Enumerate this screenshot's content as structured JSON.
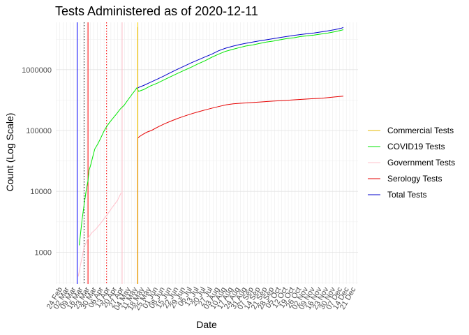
{
  "chart_data": {
    "type": "line",
    "title": "Tests Administered as of 2020-12-11",
    "xlabel": "Date",
    "ylabel": "Count (Log Scale)",
    "y_scale": "log",
    "ylim": [
      300,
      6000000
    ],
    "xlim": [
      "2020-02-20",
      "2020-12-26"
    ],
    "grid": true,
    "legend_position": "right",
    "y_ticks": [
      {
        "value": 1000,
        "label": "1000"
      },
      {
        "value": 10000,
        "label": "10000"
      },
      {
        "value": 100000,
        "label": "100000"
      },
      {
        "value": 1000000,
        "label": "1000000"
      }
    ],
    "x_ticks": [
      {
        "date": "2020-02-24",
        "label": "24 Feb"
      },
      {
        "date": "2020-03-02",
        "label": "02 Mar"
      },
      {
        "date": "2020-03-09",
        "label": "09 Mar"
      },
      {
        "date": "2020-03-16",
        "label": "16 Mar"
      },
      {
        "date": "2020-03-23",
        "label": "23 Mar"
      },
      {
        "date": "2020-03-30",
        "label": "30 Mar"
      },
      {
        "date": "2020-04-06",
        "label": "06 Apr"
      },
      {
        "date": "2020-04-13",
        "label": "13 Apr"
      },
      {
        "date": "2020-04-20",
        "label": "20 Apr"
      },
      {
        "date": "2020-04-27",
        "label": "27 Apr"
      },
      {
        "date": "2020-05-04",
        "label": "04 May"
      },
      {
        "date": "2020-05-11",
        "label": "11 May"
      },
      {
        "date": "2020-05-18",
        "label": "18 May"
      },
      {
        "date": "2020-05-25",
        "label": "25 May"
      },
      {
        "date": "2020-06-01",
        "label": "01 Jun"
      },
      {
        "date": "2020-06-08",
        "label": "08 Jun"
      },
      {
        "date": "2020-06-15",
        "label": "15 Jun"
      },
      {
        "date": "2020-06-22",
        "label": "22 Jun"
      },
      {
        "date": "2020-06-29",
        "label": "29 Jun"
      },
      {
        "date": "2020-07-06",
        "label": "06 Jul"
      },
      {
        "date": "2020-07-13",
        "label": "13 Jul"
      },
      {
        "date": "2020-07-20",
        "label": "20 Jul"
      },
      {
        "date": "2020-07-27",
        "label": "27 Jul"
      },
      {
        "date": "2020-08-03",
        "label": "03 Aug"
      },
      {
        "date": "2020-08-10",
        "label": "10 Aug"
      },
      {
        "date": "2020-08-17",
        "label": "17 Aug"
      },
      {
        "date": "2020-08-24",
        "label": "24 Aug"
      },
      {
        "date": "2020-08-31",
        "label": "31 Aug"
      },
      {
        "date": "2020-09-07",
        "label": "07 Sep"
      },
      {
        "date": "2020-09-14",
        "label": "14 Sep"
      },
      {
        "date": "2020-09-21",
        "label": "21 Sep"
      },
      {
        "date": "2020-09-28",
        "label": "28 Sep"
      },
      {
        "date": "2020-10-05",
        "label": "05 Oct"
      },
      {
        "date": "2020-10-12",
        "label": "12 Oct"
      },
      {
        "date": "2020-10-19",
        "label": "19 Oct"
      },
      {
        "date": "2020-10-26",
        "label": "26 Oct"
      },
      {
        "date": "2020-11-02",
        "label": "02 Nov"
      },
      {
        "date": "2020-11-09",
        "label": "09 Nov"
      },
      {
        "date": "2020-11-16",
        "label": "16 Nov"
      },
      {
        "date": "2020-11-23",
        "label": "23 Nov"
      },
      {
        "date": "2020-11-30",
        "label": "30 Nov"
      },
      {
        "date": "2020-12-07",
        "label": "07 Dec"
      },
      {
        "date": "2020-12-14",
        "label": "14 Dec"
      },
      {
        "date": "2020-12-21",
        "label": "21 Dec"
      }
    ],
    "reference_lines": [
      {
        "date": "2020-03-13",
        "color": "#0000ff",
        "style": "solid"
      },
      {
        "date": "2020-03-20",
        "color": "#000000",
        "style": "dotted"
      },
      {
        "date": "2020-03-24",
        "color": "#ff0000",
        "style": "solid"
      },
      {
        "date": "2020-04-12",
        "color": "#ff0000",
        "style": "dotted"
      },
      {
        "date": "2020-04-28",
        "color": "#ffc0cb",
        "style": "solid"
      },
      {
        "date": "2020-05-14",
        "color": "#ffd700",
        "style": "solid"
      }
    ],
    "series": [
      {
        "name": "Commercial Tests",
        "color": "#e6b800",
        "points": [
          [
            "2020-05-14",
            300
          ],
          [
            "2020-05-14",
            5000000
          ]
        ]
      },
      {
        "name": "COVID19 Tests",
        "color": "#00e600",
        "points": [
          [
            "2020-03-15",
            1300
          ],
          [
            "2020-03-16",
            1800
          ],
          [
            "2020-03-18",
            3500
          ],
          [
            "2020-03-20",
            6000
          ],
          [
            "2020-03-22",
            10000
          ],
          [
            "2020-03-24",
            15000
          ],
          [
            "2020-03-25",
            22000
          ],
          [
            "2020-03-27",
            28000
          ],
          [
            "2020-03-29",
            38000
          ],
          [
            "2020-03-31",
            50000
          ],
          [
            "2020-04-03",
            60000
          ],
          [
            "2020-04-06",
            75000
          ],
          [
            "2020-04-09",
            95000
          ],
          [
            "2020-04-12",
            115000
          ],
          [
            "2020-04-15",
            135000
          ],
          [
            "2020-04-18",
            155000
          ],
          [
            "2020-04-22",
            185000
          ],
          [
            "2020-04-26",
            225000
          ],
          [
            "2020-04-30",
            260000
          ],
          [
            "2020-05-04",
            320000
          ],
          [
            "2020-05-08",
            390000
          ],
          [
            "2020-05-11",
            450000
          ],
          [
            "2020-05-13",
            500000
          ],
          [
            "2020-05-15",
            440000
          ],
          [
            "2020-05-20",
            470000
          ],
          [
            "2020-05-27",
            540000
          ],
          [
            "2020-06-03",
            600000
          ],
          [
            "2020-06-10",
            680000
          ],
          [
            "2020-06-17",
            770000
          ],
          [
            "2020-06-24",
            870000
          ],
          [
            "2020-07-01",
            980000
          ],
          [
            "2020-07-08",
            1100000
          ],
          [
            "2020-07-15",
            1250000
          ],
          [
            "2020-07-22",
            1400000
          ],
          [
            "2020-07-29",
            1600000
          ],
          [
            "2020-08-05",
            1800000
          ],
          [
            "2020-08-12",
            2000000
          ],
          [
            "2020-08-19",
            2150000
          ],
          [
            "2020-08-26",
            2300000
          ],
          [
            "2020-09-02",
            2450000
          ],
          [
            "2020-09-09",
            2550000
          ],
          [
            "2020-09-16",
            2700000
          ],
          [
            "2020-09-23",
            2850000
          ],
          [
            "2020-09-30",
            2950000
          ],
          [
            "2020-10-07",
            3100000
          ],
          [
            "2020-10-14",
            3250000
          ],
          [
            "2020-10-21",
            3350000
          ],
          [
            "2020-10-28",
            3500000
          ],
          [
            "2020-11-04",
            3600000
          ],
          [
            "2020-11-11",
            3700000
          ],
          [
            "2020-11-18",
            3850000
          ],
          [
            "2020-11-25",
            4000000
          ],
          [
            "2020-12-02",
            4200000
          ],
          [
            "2020-12-09",
            4450000
          ],
          [
            "2020-12-11",
            4550000
          ]
        ]
      },
      {
        "name": "Government Tests",
        "color": "#ffc0cb",
        "points": [
          [
            "2020-03-14",
            400
          ],
          [
            "2020-03-17",
            700
          ],
          [
            "2020-03-20",
            1200
          ],
          [
            "2020-03-24",
            1700
          ],
          [
            "2020-03-28",
            2100
          ],
          [
            "2020-04-01",
            2400
          ],
          [
            "2020-04-06",
            3000
          ],
          [
            "2020-04-12",
            4000
          ],
          [
            "2020-04-18",
            5500
          ],
          [
            "2020-04-23",
            7000
          ],
          [
            "2020-04-27",
            9500
          ]
        ]
      },
      {
        "name": "Serology Tests",
        "color": "#e60000",
        "points": [
          [
            "2020-05-14",
            300
          ],
          [
            "2020-05-14",
            4500
          ],
          [
            "2020-05-14",
            75000
          ],
          [
            "2020-05-16",
            80000
          ],
          [
            "2020-05-20",
            88000
          ],
          [
            "2020-05-24",
            95000
          ],
          [
            "2020-05-28",
            100000
          ],
          [
            "2020-06-04",
            115000
          ],
          [
            "2020-06-11",
            130000
          ],
          [
            "2020-06-18",
            145000
          ],
          [
            "2020-06-25",
            160000
          ],
          [
            "2020-07-02",
            175000
          ],
          [
            "2020-07-09",
            190000
          ],
          [
            "2020-07-16",
            205000
          ],
          [
            "2020-07-23",
            220000
          ],
          [
            "2020-07-30",
            235000
          ],
          [
            "2020-08-06",
            250000
          ],
          [
            "2020-08-13",
            265000
          ],
          [
            "2020-08-20",
            275000
          ],
          [
            "2020-08-27",
            280000
          ],
          [
            "2020-09-03",
            285000
          ],
          [
            "2020-09-10",
            290000
          ],
          [
            "2020-09-17",
            295000
          ],
          [
            "2020-09-24",
            300000
          ],
          [
            "2020-10-01",
            305000
          ],
          [
            "2020-10-08",
            310000
          ],
          [
            "2020-10-15",
            315000
          ],
          [
            "2020-10-22",
            320000
          ],
          [
            "2020-10-29",
            325000
          ],
          [
            "2020-11-05",
            330000
          ],
          [
            "2020-11-12",
            335000
          ],
          [
            "2020-11-19",
            340000
          ],
          [
            "2020-11-26",
            348000
          ],
          [
            "2020-12-03",
            358000
          ],
          [
            "2020-12-11",
            368000
          ]
        ]
      },
      {
        "name": "Total Tests",
        "color": "#0000cc",
        "points": [
          [
            "2020-05-14",
            500000
          ],
          [
            "2020-05-16",
            520000
          ],
          [
            "2020-05-20",
            550000
          ],
          [
            "2020-05-27",
            620000
          ],
          [
            "2020-06-03",
            700000
          ],
          [
            "2020-06-10",
            790000
          ],
          [
            "2020-06-17",
            900000
          ],
          [
            "2020-06-24",
            1020000
          ],
          [
            "2020-07-01",
            1150000
          ],
          [
            "2020-07-08",
            1300000
          ],
          [
            "2020-07-15",
            1450000
          ],
          [
            "2020-07-22",
            1620000
          ],
          [
            "2020-07-29",
            1800000
          ],
          [
            "2020-08-05",
            2050000
          ],
          [
            "2020-08-12",
            2250000
          ],
          [
            "2020-08-19",
            2420000
          ],
          [
            "2020-08-26",
            2580000
          ],
          [
            "2020-09-02",
            2720000
          ],
          [
            "2020-09-09",
            2850000
          ],
          [
            "2020-09-16",
            2980000
          ],
          [
            "2020-09-23",
            3100000
          ],
          [
            "2020-09-30",
            3230000
          ],
          [
            "2020-10-07",
            3380000
          ],
          [
            "2020-10-14",
            3520000
          ],
          [
            "2020-10-21",
            3650000
          ],
          [
            "2020-10-28",
            3780000
          ],
          [
            "2020-11-04",
            3900000
          ],
          [
            "2020-11-11",
            4020000
          ],
          [
            "2020-11-18",
            4180000
          ],
          [
            "2020-11-25",
            4350000
          ],
          [
            "2020-12-02",
            4550000
          ],
          [
            "2020-12-09",
            4800000
          ],
          [
            "2020-12-11",
            4950000
          ]
        ]
      }
    ]
  }
}
